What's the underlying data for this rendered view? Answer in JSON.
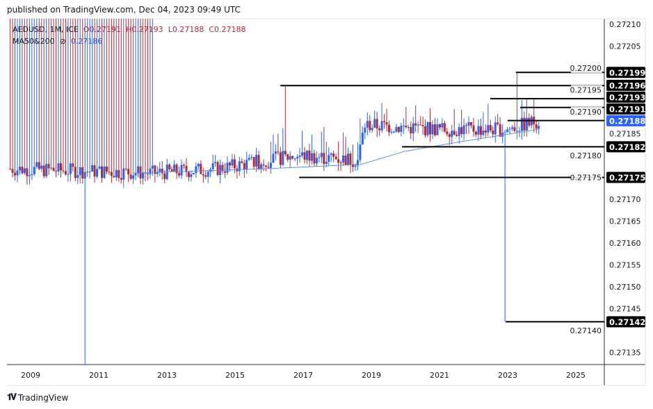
{
  "header": {
    "published": "published on TradingView.com, Dec 04, 2023 09:49 UTC"
  },
  "legend": {
    "symbol": "AEDUSD, 1M, ICE",
    "open": "O0.27191",
    "high": "H0.27193",
    "low": "L0.27188",
    "close": "C0.27188",
    "ma_label": "MA50&200",
    "ma_icon": "eye-icon",
    "ma_value": "0.27186"
  },
  "brand": {
    "name": "TradingView",
    "logo": "TV"
  },
  "colors": {
    "up": "#2962ff",
    "down": "#b22833",
    "ma": "#5b8def",
    "current": "#2962ff",
    "line": "#000000"
  },
  "chart_data": {
    "type": "candlestick",
    "symbol": "AEDUSD",
    "interval": "1M",
    "ylim": [
      0.27131,
      0.27212
    ],
    "xlim": [
      2008.3,
      2026.2
    ],
    "y_ticks": [
      "0.27210",
      "0.27205",
      "0.27200",
      "0.27195",
      "0.27190",
      "0.27185",
      "0.27180",
      "0.27175",
      "0.27170",
      "0.27165",
      "0.27160",
      "0.27155",
      "0.27150",
      "0.27145",
      "0.27140",
      "0.27135"
    ],
    "x_ticks": [
      "2009",
      "2011",
      "2013",
      "2015",
      "2017",
      "2019",
      "2021",
      "2023",
      "2025"
    ],
    "price_levels_approx": [
      [
        2008.3,
        0.27177
      ],
      [
        2012.6,
        0.27176
      ],
      [
        2014.5,
        0.27177
      ],
      [
        2016.8,
        0.2718
      ],
      [
        2018.6,
        0.27179
      ],
      [
        2018.8,
        0.27187
      ],
      [
        2021.0,
        0.27186
      ],
      [
        2023.0,
        0.27186
      ],
      [
        2023.9,
        0.27188
      ]
    ],
    "ma_approx": [
      [
        2012.0,
        0.27176
      ],
      [
        2016.0,
        0.27177
      ],
      [
        2018.7,
        0.27178
      ],
      [
        2020.0,
        0.27181
      ],
      [
        2021.5,
        0.27183
      ],
      [
        2023.9,
        0.27186
      ]
    ],
    "horizontal_levels": [
      {
        "price": 0.27199,
        "label": "0.27199",
        "from": 2023.24
      },
      {
        "price": 0.27196,
        "label": "0.27196",
        "from": 2016.33
      },
      {
        "price": 0.27193,
        "label": "0.27193",
        "from": 2022.49
      },
      {
        "price": 0.27191,
        "label": "0.27191",
        "from": 2023.37
      },
      {
        "price": 0.27182,
        "label": "0.27182",
        "from": 2019.9
      },
      {
        "price": 0.27175,
        "label": "0.27175",
        "from": 2016.88
      },
      {
        "price": 0.27142,
        "label": "0.27142",
        "from": 2022.94
      }
    ],
    "current_price": {
      "price": 0.27188,
      "label": "0.27188",
      "from": 2023.0
    }
  }
}
